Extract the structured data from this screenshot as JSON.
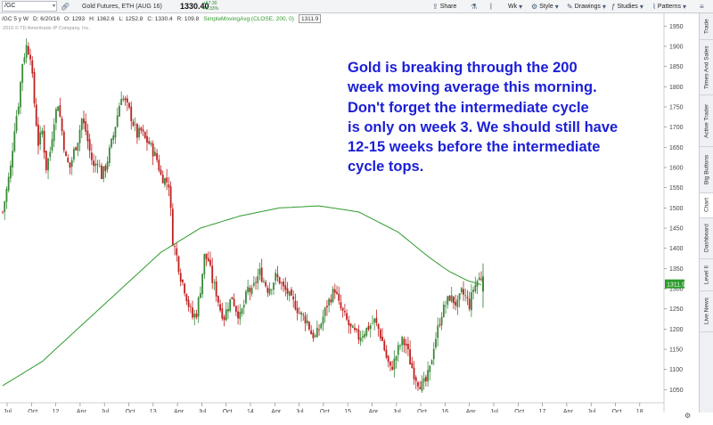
{
  "toolbar": {
    "symbol": "/GC",
    "instrument": "Gold Futures, ETH (AUG 16)",
    "last_price": "1330.40",
    "change_abs": "+67.30",
    "change_pct": "+5.33%",
    "share_label": "Share",
    "timeframe_label": "Wk",
    "style_label": "Style",
    "drawings_label": "Drawings",
    "studies_label": "Studies",
    "patterns_label": "Patterns"
  },
  "inforow": {
    "symbol_period": "/GC 5 y W",
    "date": "D: 6/20/16",
    "open": "O: 1293",
    "high": "H: 1362.6",
    "low": "L: 1252.8",
    "close": "C: 1330.4",
    "range": "R: 109.8",
    "sma_label": "SimpleMovingAvg (CLOSE, 200, 0)",
    "sma_value": "1311.9"
  },
  "copyright": "2016 © TD Ameritrade IP Company, Inc.",
  "annotation": [
    "Gold is breaking through the 200",
    "week moving average this morning.",
    "Don't forget the intermediate cycle",
    "is only on week 3. We should still have",
    "12-15 weeks before the intermediate",
    "cycle tops."
  ],
  "right_tabs": [
    "Trade",
    "Times And Sales",
    "Active Trader",
    "Big Buttons",
    "Chart",
    "Dashboard",
    "Level II",
    "Live News"
  ],
  "active_tab": "Chart",
  "bottom_icon": "settings-icon",
  "chart_data": {
    "type": "candlestick",
    "y_ticks": [
      1050,
      1100,
      1150,
      1200,
      1250,
      1300,
      1350,
      1400,
      1450,
      1500,
      1550,
      1600,
      1650,
      1700,
      1750,
      1800,
      1850,
      1900,
      1950
    ],
    "ylim": [
      1020,
      1955
    ],
    "x_ticks": [
      "Jul",
      "Oct",
      "12",
      "Apr",
      "Jul",
      "Oct",
      "13",
      "Apr",
      "Jul",
      "Oct",
      "14",
      "Apr",
      "Jul",
      "Oct",
      "15",
      "Apr",
      "Jul",
      "Oct",
      "16",
      "Apr",
      "Jul",
      "Oct",
      "17",
      "Apr",
      "Jul",
      "Oct",
      "18",
      "Apr"
    ],
    "price_label": "1311.9",
    "price_label_color": "#2a9a2a",
    "up_color": "#3a8a3a",
    "down_color": "#c02020",
    "sma_color": "#2e9b2e",
    "close_path": [
      [
        0,
        1490
      ],
      [
        4,
        1600
      ],
      [
        6,
        1700
      ],
      [
        8,
        1760
      ],
      [
        10,
        1860
      ],
      [
        12,
        1900
      ],
      [
        14,
        1880
      ],
      [
        16,
        1760
      ],
      [
        18,
        1660
      ],
      [
        20,
        1690
      ],
      [
        22,
        1600
      ],
      [
        24,
        1640
      ],
      [
        26,
        1720
      ],
      [
        28,
        1760
      ],
      [
        30,
        1690
      ],
      [
        32,
        1620
      ],
      [
        34,
        1600
      ],
      [
        36,
        1640
      ],
      [
        38,
        1670
      ],
      [
        40,
        1720
      ],
      [
        42,
        1690
      ],
      [
        44,
        1640
      ],
      [
        46,
        1600
      ],
      [
        48,
        1620
      ],
      [
        50,
        1580
      ],
      [
        52,
        1600
      ],
      [
        54,
        1640
      ],
      [
        56,
        1680
      ],
      [
        58,
        1730
      ],
      [
        60,
        1780
      ],
      [
        62,
        1760
      ],
      [
        64,
        1740
      ],
      [
        66,
        1710
      ],
      [
        68,
        1680
      ],
      [
        70,
        1690
      ],
      [
        72,
        1670
      ],
      [
        74,
        1660
      ],
      [
        76,
        1640
      ],
      [
        78,
        1620
      ],
      [
        80,
        1580
      ],
      [
        82,
        1570
      ],
      [
        84,
        1560
      ],
      [
        86,
        1420
      ],
      [
        88,
        1380
      ],
      [
        90,
        1330
      ],
      [
        92,
        1300
      ],
      [
        94,
        1260
      ],
      [
        96,
        1230
      ],
      [
        98,
        1240
      ],
      [
        100,
        1300
      ],
      [
        102,
        1380
      ],
      [
        104,
        1370
      ],
      [
        106,
        1320
      ],
      [
        108,
        1290
      ],
      [
        110,
        1250
      ],
      [
        112,
        1230
      ],
      [
        114,
        1260
      ],
      [
        116,
        1280
      ],
      [
        118,
        1250
      ],
      [
        120,
        1230
      ],
      [
        122,
        1260
      ],
      [
        124,
        1300
      ],
      [
        126,
        1290
      ],
      [
        128,
        1320
      ],
      [
        130,
        1340
      ],
      [
        132,
        1320
      ],
      [
        134,
        1300
      ],
      [
        136,
        1310
      ],
      [
        138,
        1330
      ],
      [
        140,
        1320
      ],
      [
        142,
        1300
      ],
      [
        144,
        1290
      ],
      [
        146,
        1270
      ],
      [
        148,
        1260
      ],
      [
        150,
        1240
      ],
      [
        152,
        1230
      ],
      [
        154,
        1220
      ],
      [
        156,
        1190
      ],
      [
        158,
        1180
      ],
      [
        160,
        1200
      ],
      [
        162,
        1230
      ],
      [
        164,
        1260
      ],
      [
        166,
        1280
      ],
      [
        168,
        1300
      ],
      [
        170,
        1260
      ],
      [
        172,
        1240
      ],
      [
        174,
        1220
      ],
      [
        176,
        1200
      ],
      [
        178,
        1190
      ],
      [
        180,
        1180
      ],
      [
        182,
        1190
      ],
      [
        184,
        1200
      ],
      [
        186,
        1210
      ],
      [
        188,
        1220
      ],
      [
        190,
        1200
      ],
      [
        192,
        1170
      ],
      [
        194,
        1130
      ],
      [
        196,
        1100
      ],
      [
        198,
        1120
      ],
      [
        200,
        1150
      ],
      [
        202,
        1170
      ],
      [
        204,
        1160
      ],
      [
        206,
        1120
      ],
      [
        208,
        1090
      ],
      [
        210,
        1070
      ],
      [
        212,
        1060
      ],
      [
        214,
        1070
      ],
      [
        216,
        1100
      ],
      [
        218,
        1160
      ],
      [
        220,
        1200
      ],
      [
        222,
        1240
      ],
      [
        224,
        1260
      ],
      [
        226,
        1280
      ],
      [
        228,
        1270
      ],
      [
        230,
        1260
      ],
      [
        232,
        1290
      ],
      [
        234,
        1280
      ],
      [
        236,
        1260
      ],
      [
        238,
        1300
      ],
      [
        240,
        1320
      ],
      [
        242,
        1330
      ]
    ],
    "sma_path": [
      [
        0,
        1060
      ],
      [
        20,
        1120
      ],
      [
        40,
        1210
      ],
      [
        60,
        1300
      ],
      [
        80,
        1390
      ],
      [
        100,
        1450
      ],
      [
        120,
        1480
      ],
      [
        140,
        1500
      ],
      [
        160,
        1505
      ],
      [
        180,
        1490
      ],
      [
        200,
        1440
      ],
      [
        215,
        1380
      ],
      [
        225,
        1345
      ],
      [
        235,
        1320
      ],
      [
        242,
        1310
      ]
    ]
  }
}
